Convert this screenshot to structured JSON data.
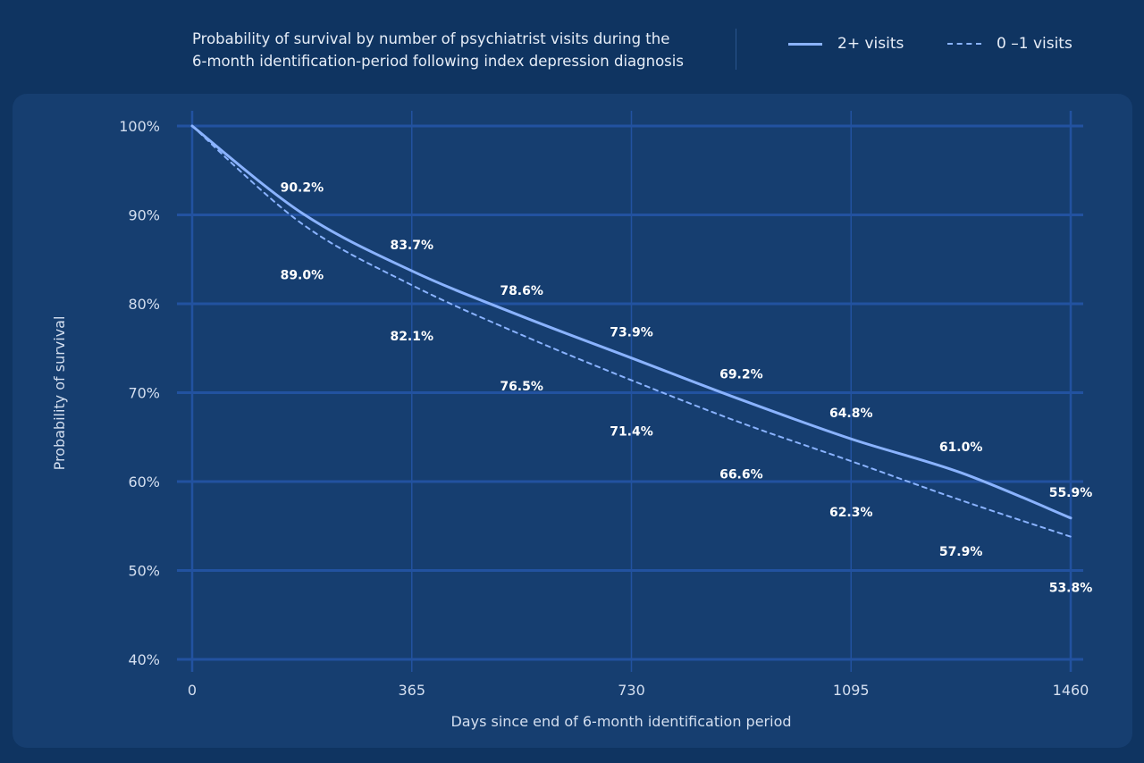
{
  "header": {
    "title_line1": "Probability of survival by number of psychiatrist visits during the",
    "title_line2": "6-month identification-period following index depression diagnosis"
  },
  "legend": {
    "solid_label": "2+ visits",
    "dashed_label": "0 –1 visits"
  },
  "colors": {
    "background": "#0f3461",
    "panel": "#163e70",
    "grid": "#2252a0",
    "line": "#8ab3ff"
  },
  "chart_data": {
    "type": "line",
    "title": "Probability of survival by number of psychiatrist visits during the 6-month identification-period following index depression diagnosis",
    "xlabel": "Days since end of 6-month identification period",
    "ylabel": "Probability of survival",
    "xlim": [
      0,
      1460
    ],
    "ylim": [
      40,
      100
    ],
    "x_ticks": [
      0,
      365,
      730,
      1095,
      1460
    ],
    "y_ticks": [
      40,
      50,
      60,
      70,
      80,
      90,
      100
    ],
    "y_tick_labels": [
      "40%",
      "50%",
      "60%",
      "70%",
      "80%",
      "90%",
      "100%"
    ],
    "grid": true,
    "legend_position": "top-right",
    "series": [
      {
        "name": "2+ visits",
        "style": "solid",
        "x": [
          0,
          182.5,
          365,
          547.5,
          730,
          912.5,
          1095,
          1277.5,
          1460
        ],
        "y": [
          100,
          90.2,
          83.7,
          78.6,
          73.9,
          69.2,
          64.8,
          61.0,
          55.9
        ],
        "labels": [
          "",
          "90.2%",
          "83.7%",
          "78.6%",
          "73.9%",
          "69.2%",
          "64.8%",
          "61.0%",
          "55.9%"
        ]
      },
      {
        "name": "0 –1 visits",
        "style": "dashed",
        "x": [
          0,
          182.5,
          365,
          547.5,
          730,
          912.5,
          1095,
          1277.5,
          1460
        ],
        "y": [
          100,
          89.0,
          82.1,
          76.5,
          71.4,
          66.6,
          62.3,
          57.9,
          53.8
        ],
        "labels": [
          "",
          "89.0%",
          "82.1%",
          "76.5%",
          "71.4%",
          "66.6%",
          "62.3%",
          "57.9%",
          "53.8%"
        ]
      }
    ]
  }
}
